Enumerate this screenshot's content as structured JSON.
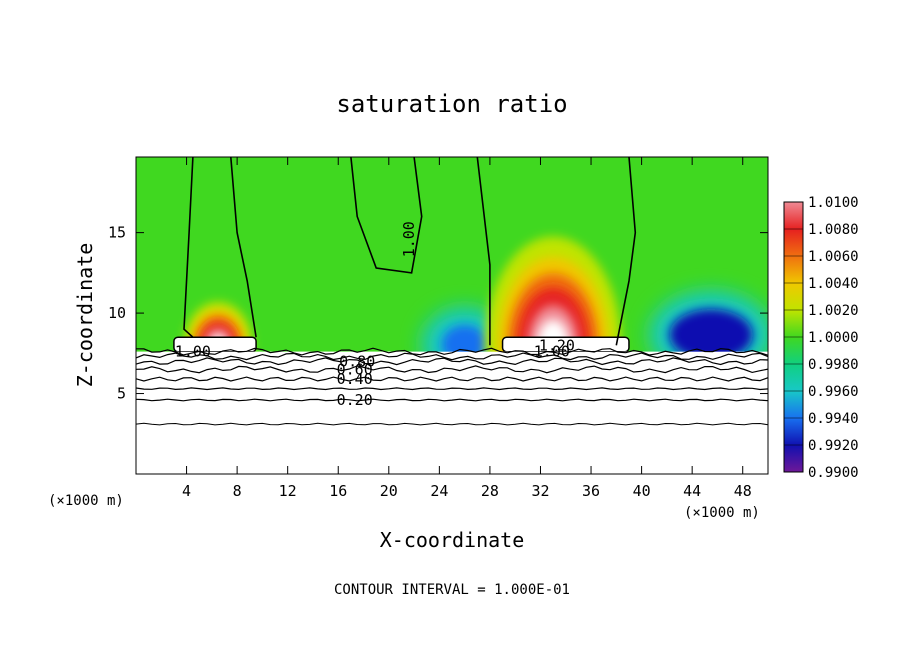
{
  "chart_data": {
    "type": "heatmap",
    "title": "saturation ratio",
    "xlabel": "X-coordinate",
    "ylabel": "Z-coordinate",
    "x_unit": "(×1000 m)",
    "y_unit": "(×1000 m)",
    "xlim": [
      0,
      50
    ],
    "ylim": [
      0,
      19.7
    ],
    "x_ticks": [
      4,
      8,
      12,
      16,
      20,
      24,
      28,
      32,
      36,
      40,
      44,
      48
    ],
    "y_ticks": [
      5,
      10,
      15
    ],
    "colorbar": {
      "min": 0.99,
      "max": 1.01,
      "labels": [
        "1.0100",
        "1.0080",
        "1.0060",
        "1.0040",
        "1.0020",
        "1.0000",
        "0.9980",
        "0.9960",
        "0.9940",
        "0.9920",
        "0.9900"
      ],
      "colors": [
        "#f08a94",
        "#e62020",
        "#f07010",
        "#f0c800",
        "#c0e400",
        "#40d820",
        "#10d080",
        "#18c8c8",
        "#1870f0",
        "#1010b0",
        "#701898"
      ]
    },
    "contour_interval": "CONTOUR INTERVAL = 1.000E-01",
    "contour_labels": [
      {
        "text": "1.00",
        "x": 4.5,
        "z": 7.6
      },
      {
        "text": "0.80",
        "x": 17.5,
        "z": 7.0
      },
      {
        "text": "0.60",
        "x": 17.3,
        "z": 6.5
      },
      {
        "text": "0.40",
        "x": 17.3,
        "z": 5.9
      },
      {
        "text": "0.20",
        "x": 17.3,
        "z": 4.6
      },
      {
        "text": "1.00",
        "x": 22.0,
        "z": 14.9
      },
      {
        "text": "1.20",
        "x": 33.3,
        "z": 8.0
      },
      {
        "text": "1.00",
        "x": 32.9,
        "z": 7.6
      }
    ],
    "iso_levels_z": [
      3.1,
      4.6,
      5.3,
      5.9,
      6.5,
      7.0,
      7.3,
      7.6
    ],
    "subsat_regions": [
      {
        "x": [
          43,
          48
        ],
        "z": [
          7.8,
          9.5
        ],
        "value": 0.992
      },
      {
        "x": [
          25,
          27
        ],
        "z": [
          7.6,
          8.5
        ],
        "value": 0.994
      }
    ],
    "supersat_regions": [
      {
        "x": [
          29,
          37
        ],
        "z": [
          8,
          13
        ],
        "value": 1.01
      },
      {
        "x": [
          4.5,
          8.5
        ],
        "z": [
          8,
          10
        ],
        "value": 1.006
      }
    ],
    "grid": false,
    "legend": "right colorbar"
  }
}
